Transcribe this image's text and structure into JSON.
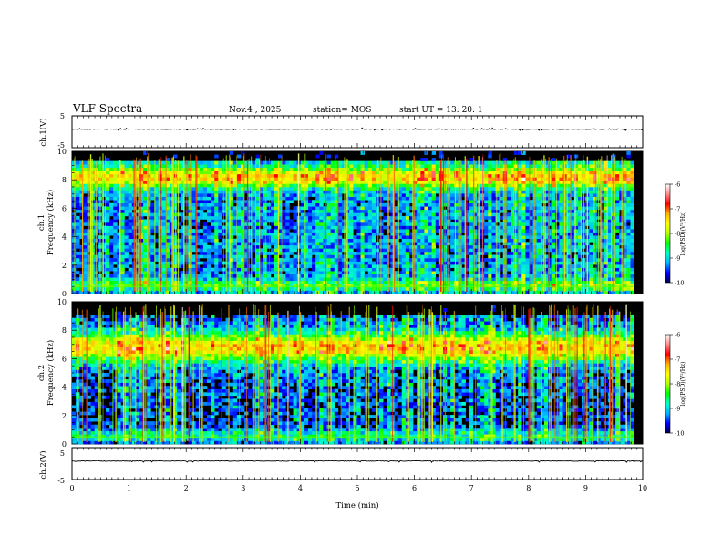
{
  "header": {
    "title": "VLF Spectra",
    "date": "Nov.4 , 2025",
    "station": "station= MOS",
    "start": "start UT = 13: 20: 1"
  },
  "colors": {
    "background": "#000000",
    "colormap": [
      "#00004a",
      "#0000ff",
      "#00b4ff",
      "#00ffc8",
      "#00ff00",
      "#b4ff00",
      "#ffff00",
      "#ffb400",
      "#ff0000",
      "#ff8c8c",
      "#ffffff"
    ]
  },
  "chart_data": [
    {
      "type": "line",
      "ylabel": "ch.1(V)",
      "ylim": [
        -5,
        5
      ],
      "yticks": [
        "5",
        "-5"
      ],
      "x": [
        0,
        10
      ],
      "values": [
        0,
        0
      ]
    },
    {
      "type": "heatmap",
      "ylabel": "ch.1\nFrequency (kHz)",
      "ylabel_line1": "ch.1",
      "ylabel_line2": "Frequency (kHz)",
      "ylim": [
        0,
        10
      ],
      "yticks": [
        "0",
        "2",
        "4",
        "6",
        "8",
        "10"
      ],
      "xlim": [
        0,
        9.85
      ],
      "colorbar": {
        "label": "log(PSD)(V²/Hz)",
        "range": [
          -10,
          -6
        ],
        "ticks": [
          "-6",
          "-7",
          "-8",
          "-9",
          "-10"
        ]
      }
    },
    {
      "type": "heatmap",
      "ylabel": "ch.2\nFrequency (kHz)",
      "ylabel_line1": "ch.2",
      "ylabel_line2": "Frequency (kHz)",
      "ylim": [
        0,
        10
      ],
      "yticks": [
        "0",
        "2",
        "4",
        "6",
        "8",
        "10"
      ],
      "xlim": [
        0,
        9.85
      ],
      "colorbar": {
        "label": "log(PSD)(V²/Hz)",
        "range": [
          -10,
          -6
        ],
        "ticks": [
          "-6",
          "-7",
          "-8",
          "-9",
          "-10"
        ]
      }
    },
    {
      "type": "line",
      "ylabel": "ch.2(V)",
      "ylim": [
        -5,
        5
      ],
      "yticks": [
        "5",
        "-5"
      ],
      "x": [
        0,
        10
      ],
      "values": [
        0,
        0
      ]
    }
  ],
  "xaxis": {
    "label": "Time (min)",
    "ticks": [
      "0",
      "1",
      "2",
      "3",
      "4",
      "5",
      "6",
      "7",
      "8",
      "9",
      "10"
    ],
    "range": [
      0,
      10
    ]
  }
}
